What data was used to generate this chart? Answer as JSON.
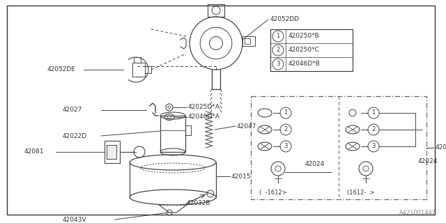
{
  "bg_color": "#ffffff",
  "border_color": "#333333",
  "line_color": "#444444",
  "text_color": "#333333",
  "fig_width": 6.4,
  "fig_height": 3.2,
  "dpi": 100,
  "watermark": "A421001447",
  "legend_items": [
    {
      "num": "1",
      "text": "420250*B"
    },
    {
      "num": "2",
      "text": "420250*C"
    },
    {
      "num": "3",
      "text": "42046D*B"
    }
  ]
}
